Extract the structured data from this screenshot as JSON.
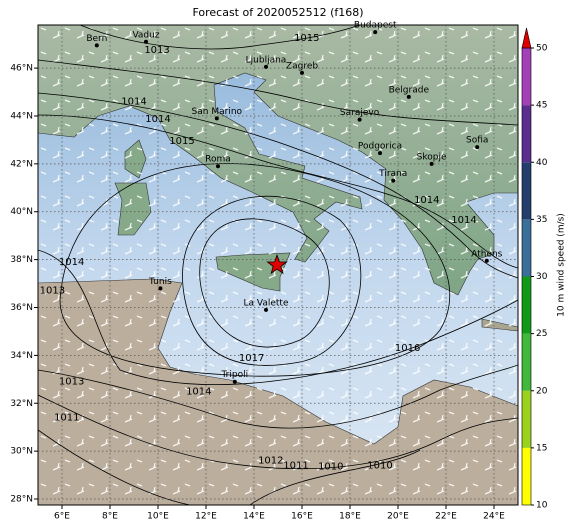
{
  "map": {
    "title": "Forecast of 2020052512 (f168)",
    "lonlim": [
      5,
      25
    ],
    "latlim": [
      27.75,
      47.8
    ],
    "lonticks": [
      {
        "value": 6,
        "label": "6°E"
      },
      {
        "value": 8,
        "label": "8°E"
      },
      {
        "value": 10,
        "label": "10°E"
      },
      {
        "value": 12,
        "label": "12°E"
      },
      {
        "value": 14,
        "label": "14°E"
      },
      {
        "value": 16,
        "label": "16°E"
      },
      {
        "value": 18,
        "label": "18°E"
      },
      {
        "value": 20,
        "label": "20°E"
      },
      {
        "value": 22,
        "label": "22°E"
      },
      {
        "value": 24,
        "label": "24°E"
      }
    ],
    "latticks": [
      {
        "value": 28,
        "label": "28°N"
      },
      {
        "value": 30,
        "label": "30°N"
      },
      {
        "value": 32,
        "label": "32°N"
      },
      {
        "value": 34,
        "label": "34°N"
      },
      {
        "value": 36,
        "label": "36°N"
      },
      {
        "value": 38,
        "label": "38°N"
      },
      {
        "value": 40,
        "label": "40°N"
      },
      {
        "value": 42,
        "label": "42°N"
      },
      {
        "value": 44,
        "label": "44°N"
      },
      {
        "value": 46,
        "label": "46°N"
      }
    ],
    "cities": [
      {
        "name": "Bern",
        "lon": 7.45,
        "lat": 46.95
      },
      {
        "name": "Vaduz",
        "lon": 9.5,
        "lat": 47.1
      },
      {
        "name": "Budapest",
        "lon": 19.05,
        "lat": 47.5
      },
      {
        "name": "Ljubljana",
        "lon": 14.5,
        "lat": 46.05
      },
      {
        "name": "Zagreb",
        "lon": 16.0,
        "lat": 45.8
      },
      {
        "name": "Belgrade",
        "lon": 20.45,
        "lat": 44.8
      },
      {
        "name": "Sarajevo",
        "lon": 18.4,
        "lat": 43.85
      },
      {
        "name": "San Marino",
        "lon": 12.45,
        "lat": 43.9
      },
      {
        "name": "Podgorica",
        "lon": 19.25,
        "lat": 42.45
      },
      {
        "name": "Sofia",
        "lon": 23.3,
        "lat": 42.7
      },
      {
        "name": "Skopje",
        "lon": 21.4,
        "lat": 42.0
      },
      {
        "name": "Roma",
        "lon": 12.5,
        "lat": 41.9
      },
      {
        "name": "Tirana",
        "lon": 19.8,
        "lat": 41.3
      },
      {
        "name": "Athens",
        "lon": 23.7,
        "lat": 37.95
      },
      {
        "name": "Tunis",
        "lon": 10.1,
        "lat": 36.8
      },
      {
        "name": "La Valette",
        "lon": 14.5,
        "lat": 35.9
      },
      {
        "name": "Tripoli",
        "lon": 13.2,
        "lat": 32.9
      }
    ],
    "marker": {
      "lon": 14.96,
      "lat": 37.77,
      "color": "#e00000"
    },
    "isobar_labels": [
      {
        "value": 1013,
        "lon": 9.96,
        "lat": 46.76
      },
      {
        "value": 1015,
        "lon": 16.2,
        "lat": 47.26
      },
      {
        "value": 1014,
        "lon": 9.0,
        "lat": 44.6
      },
      {
        "value": 1014,
        "lon": 10.0,
        "lat": 43.87
      },
      {
        "value": 1015,
        "lon": 11.0,
        "lat": 42.95
      },
      {
        "value": 1014,
        "lon": 6.4,
        "lat": 37.9
      },
      {
        "value": 1013,
        "lon": 5.6,
        "lat": 36.7
      },
      {
        "value": 1017,
        "lon": 13.9,
        "lat": 33.9
      },
      {
        "value": 1016,
        "lon": 20.4,
        "lat": 34.3
      },
      {
        "value": 1014,
        "lon": 11.7,
        "lat": 32.5
      },
      {
        "value": 1013,
        "lon": 6.4,
        "lat": 32.9
      },
      {
        "value": 1011,
        "lon": 6.2,
        "lat": 31.4
      },
      {
        "value": 1012,
        "lon": 14.7,
        "lat": 29.6
      },
      {
        "value": 1011,
        "lon": 15.75,
        "lat": 29.4
      },
      {
        "value": 1010,
        "lon": 17.2,
        "lat": 29.35
      },
      {
        "value": 1010,
        "lon": 19.25,
        "lat": 29.4
      },
      {
        "value": 1014,
        "lon": 21.2,
        "lat": 40.5
      },
      {
        "value": 1014,
        "lon": 22.75,
        "lat": 39.65
      }
    ],
    "colorbar": {
      "label": "10 m wind speed (m/s)",
      "lim": [
        10,
        50
      ],
      "ticks": [
        10,
        15,
        20,
        25,
        30,
        35,
        40,
        45,
        50
      ],
      "colors": [
        "#ffff00",
        "#9ad21c",
        "#40b83a",
        "#109a18",
        "#3a6f9a",
        "#233e6c",
        "#5b2d8f",
        "#a340b8"
      ],
      "extend_color": "#e00000"
    }
  }
}
